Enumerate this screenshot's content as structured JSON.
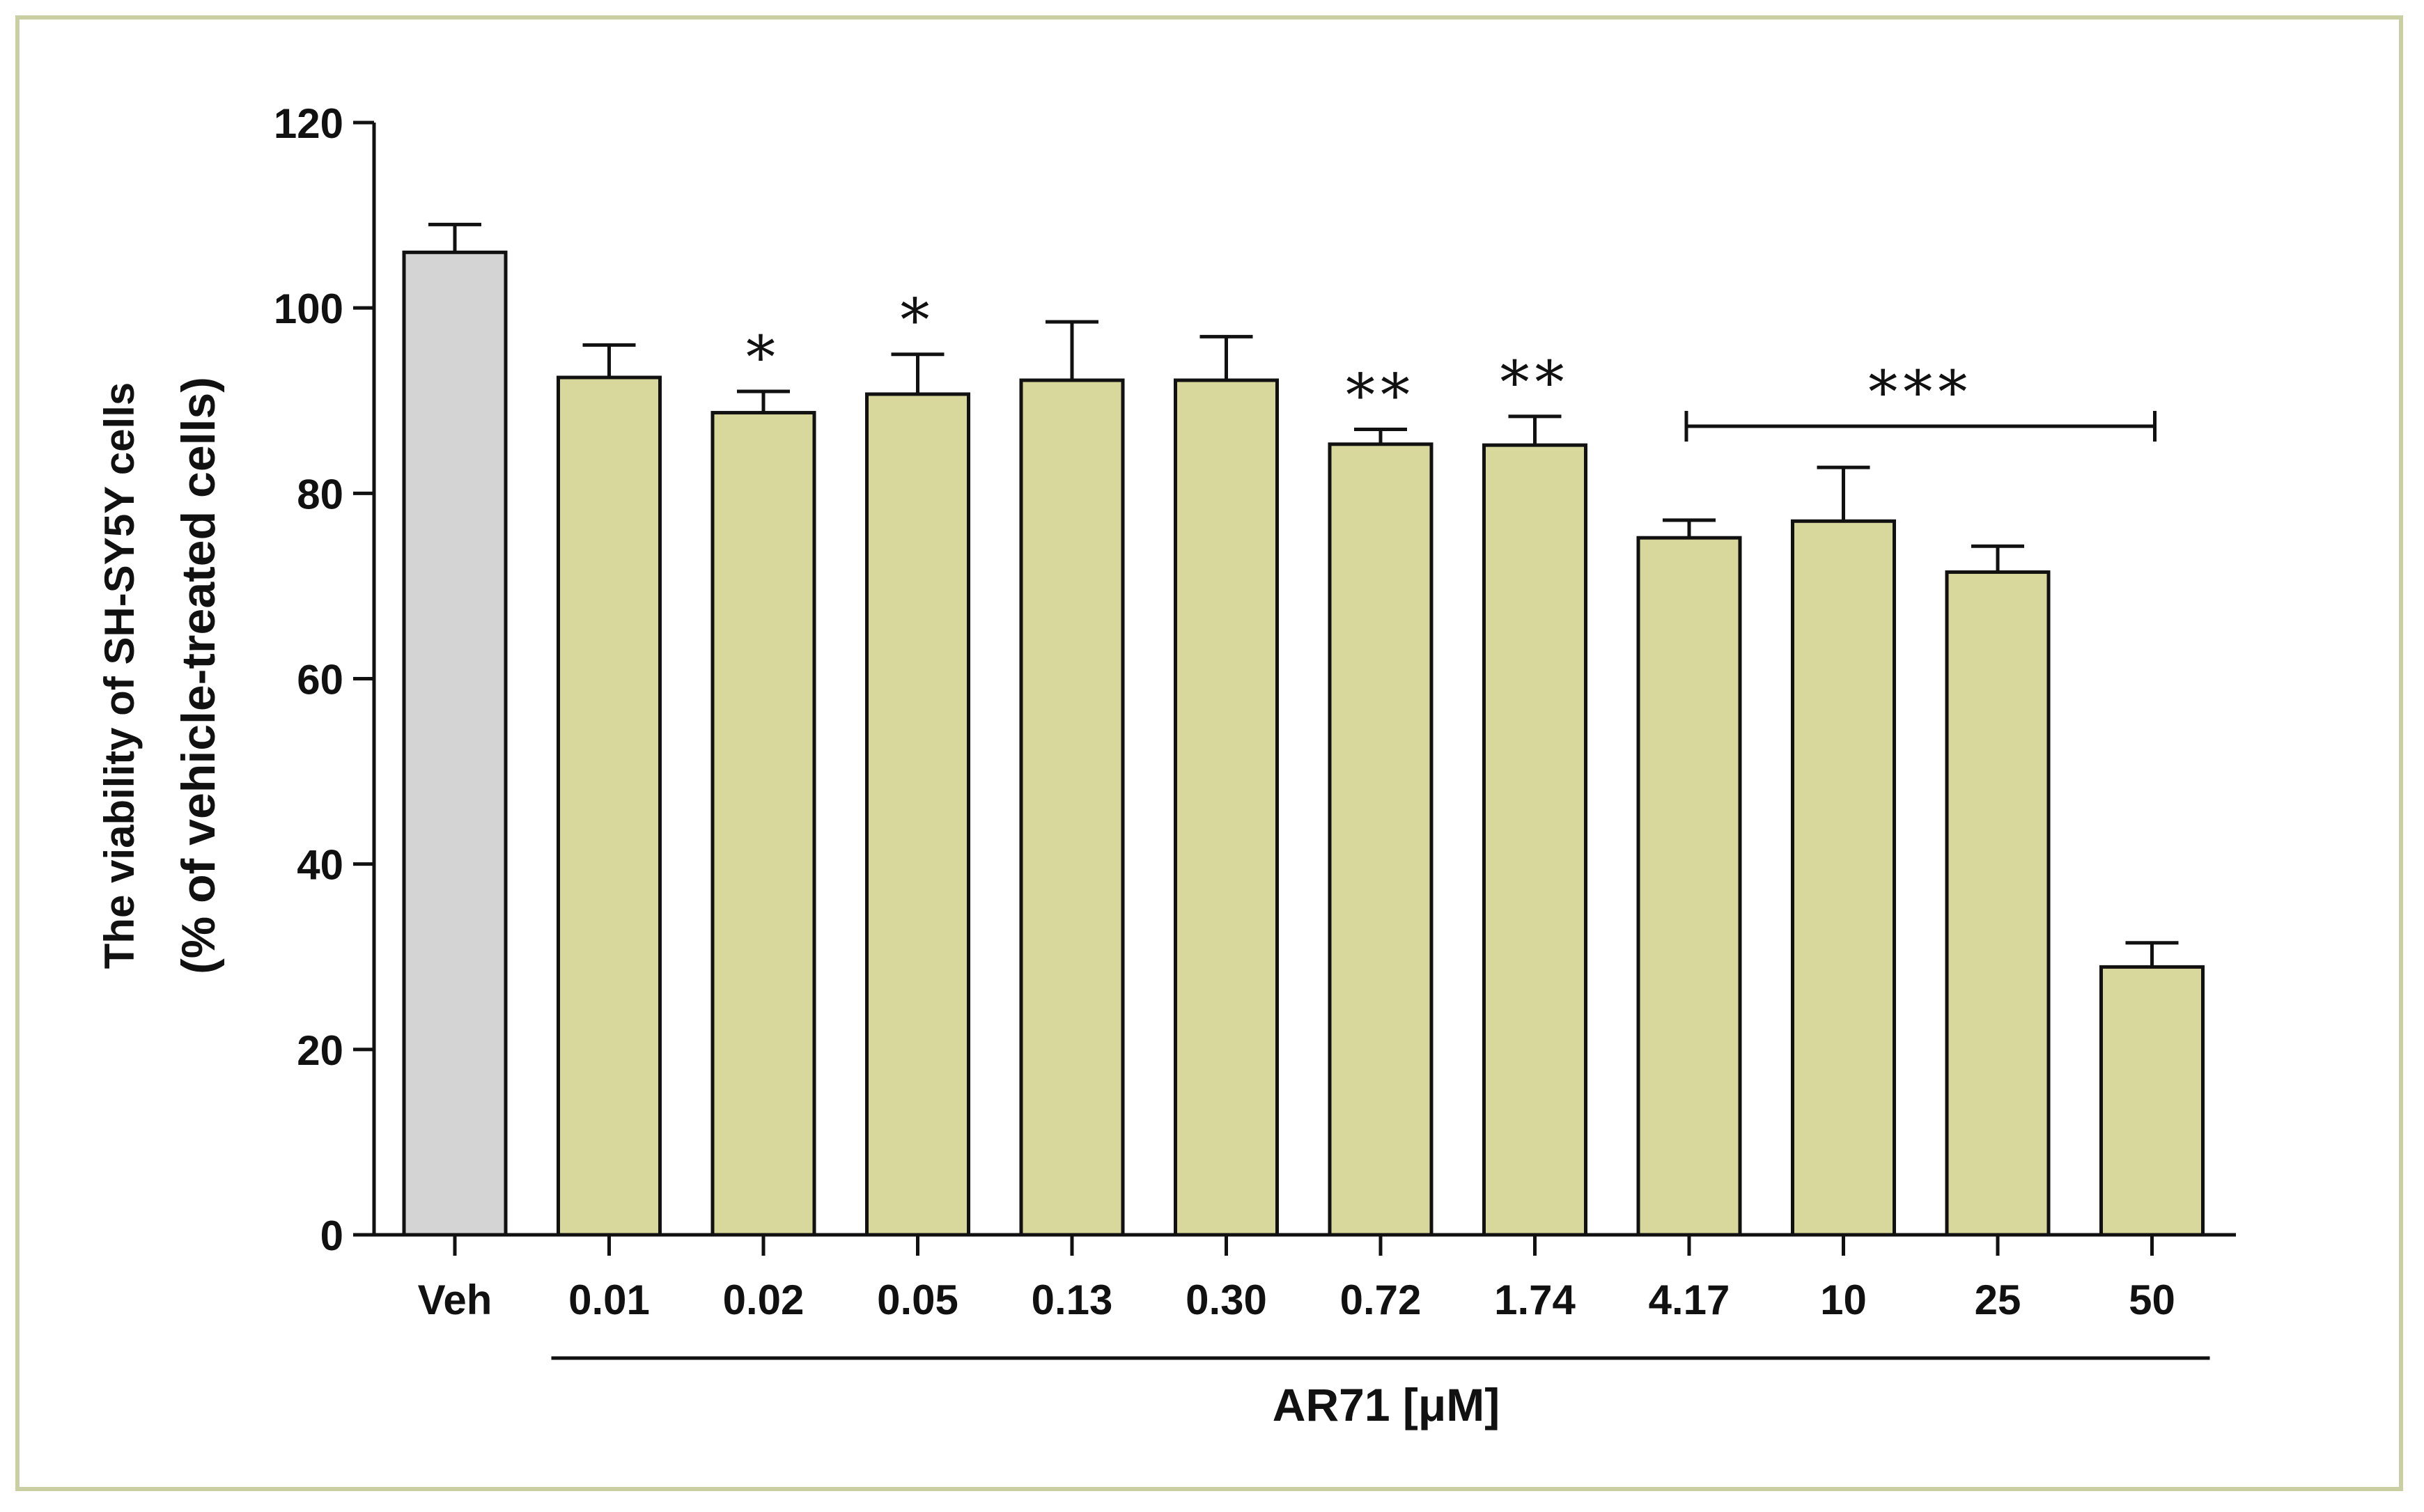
{
  "chart_data": {
    "type": "bar",
    "ylabel_line1": "The viability of SH-SY5Y cells",
    "ylabel_line2": "(% of vehicle-treated cells)",
    "xlabel": "AR71 [μM]",
    "ylim": [
      0,
      120
    ],
    "yticks": [
      "0",
      "20",
      "40",
      "60",
      "80",
      "100",
      "120"
    ],
    "categories": [
      "Veh",
      "0.01",
      "0.02",
      "0.05",
      "0.13",
      "0.30",
      "0.72",
      "1.74",
      "4.17",
      "10",
      "25",
      "50"
    ],
    "values": [
      106,
      92.5,
      88.7,
      90.7,
      92.2,
      92.2,
      85.3,
      85.2,
      75.2,
      77,
      71.5,
      28.9
    ],
    "errors": [
      3,
      3.5,
      2.3,
      4.3,
      6.3,
      4.7,
      1.6,
      3.1,
      1.9,
      5.8,
      2.8,
      2.6
    ],
    "significance": [
      "",
      "",
      "*",
      "*",
      "",
      "",
      "**",
      "**",
      "",
      "",
      "",
      ""
    ],
    "bracket": {
      "from": "4.17",
      "to": "50",
      "label": "***"
    },
    "colors": {
      "vehicle": "#d4d4d4",
      "treated": "#d8d89c",
      "frame": "#c9cfa2",
      "ink": "#111111"
    }
  }
}
